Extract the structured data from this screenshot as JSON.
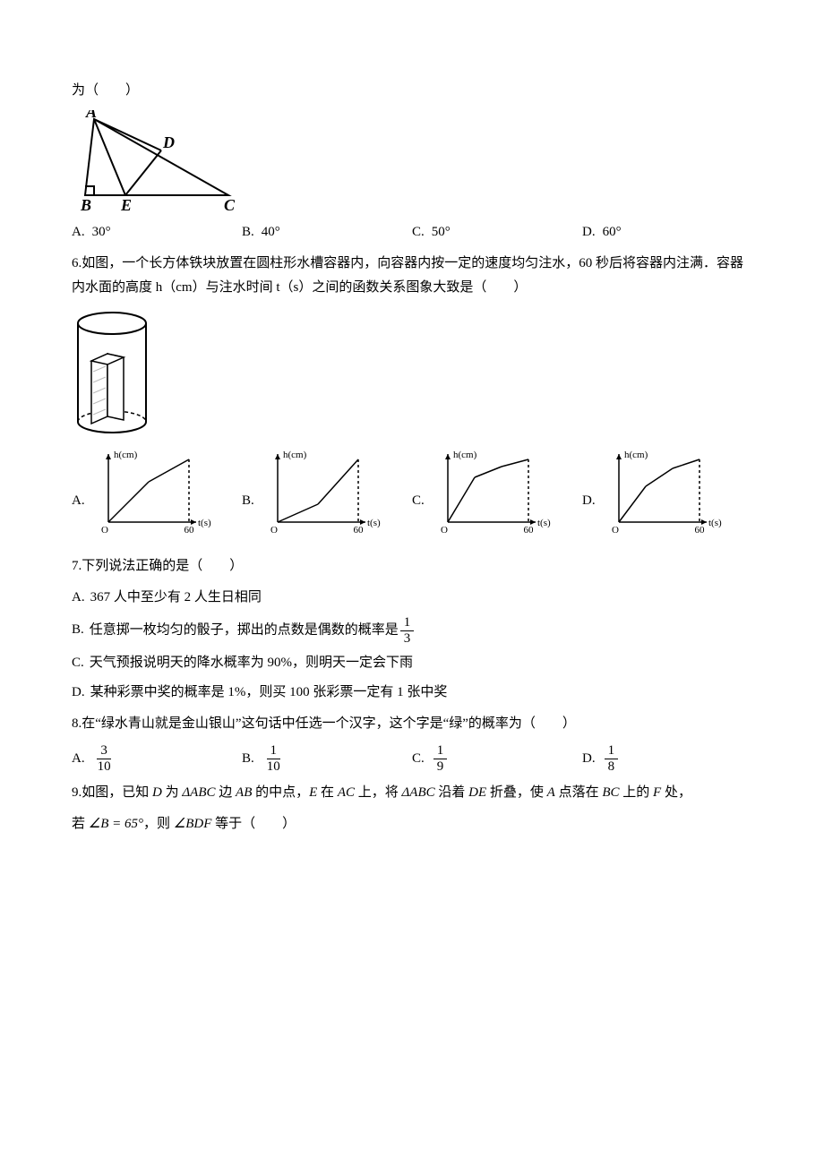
{
  "q5": {
    "tail_line": "为（　　）",
    "figure": {
      "points": {
        "A": [
          25,
          10
        ],
        "B": [
          15,
          95
        ],
        "E": [
          60,
          95
        ],
        "C": [
          175,
          95
        ],
        "D": [
          100,
          45
        ]
      },
      "right_angle_at": [
        15,
        95
      ],
      "labels": {
        "A": "A",
        "B": "B",
        "C": "C",
        "D": "D",
        "E": "E"
      },
      "stroke": "#000000",
      "stroke_width": 2,
      "font_size": 18,
      "font_style": "italic"
    },
    "options": [
      {
        "letter": "A.",
        "value": "30°"
      },
      {
        "letter": "B.",
        "value": "40°"
      },
      {
        "letter": "C.",
        "value": "50°"
      },
      {
        "letter": "D.",
        "value": "60°"
      }
    ]
  },
  "q6": {
    "text": "6.如图，一个长方体铁块放置在圆柱形水槽容器内，向容器内按一定的速度均匀注水，60 秒后将容器内注满．容器内水面的高度 h（cm）与注水时间 t（s）之间的函数关系图象大致是（　　）",
    "figure_style": {
      "stroke": "#000000",
      "fill": "#ffffff",
      "hatch": "#888888",
      "stroke_width": 2
    },
    "graph_common": {
      "x_label": "t(s)",
      "y_label": "h(cm)",
      "x_tick": "60",
      "origin": "O",
      "axis_color": "#000000",
      "dash_color": "#000000",
      "font_size": 11
    },
    "graphs": [
      {
        "letter": "A.",
        "pts": [
          [
            0,
            0
          ],
          [
            30,
            45
          ],
          [
            60,
            70
          ]
        ]
      },
      {
        "letter": "B.",
        "pts": [
          [
            0,
            0
          ],
          [
            30,
            20
          ],
          [
            60,
            70
          ]
        ]
      },
      {
        "letter": "C.",
        "pts": [
          [
            0,
            0
          ],
          [
            20,
            50
          ],
          [
            40,
            62
          ],
          [
            60,
            70
          ]
        ]
      },
      {
        "letter": "D.",
        "pts": [
          [
            0,
            0
          ],
          [
            20,
            40
          ],
          [
            40,
            60
          ],
          [
            60,
            70
          ]
        ]
      }
    ]
  },
  "q7": {
    "stem": "7.下列说法正确的是（　　）",
    "options": [
      {
        "letter": "A.",
        "text": "367 人中至少有 2 人生日相同",
        "frac": null
      },
      {
        "letter": "B.",
        "text_pre": "任意掷一枚均匀的骰子，掷出的点数是偶数的概率是",
        "frac": {
          "n": "1",
          "d": "3"
        }
      },
      {
        "letter": "C.",
        "text": "天气预报说明天的降水概率为 90%，则明天一定会下雨",
        "frac": null
      },
      {
        "letter": "D.",
        "text": "某种彩票中奖的概率是 1%，则买 100 张彩票一定有 1 张中奖",
        "frac": null
      }
    ]
  },
  "q8": {
    "stem": "8.在“绿水青山就是金山银山”这句话中任选一个汉字，这个字是“绿”的概率为（　　）",
    "options": [
      {
        "letter": "A.",
        "frac": {
          "n": "3",
          "d": "10"
        }
      },
      {
        "letter": "B.",
        "frac": {
          "n": "1",
          "d": "10"
        }
      },
      {
        "letter": "C.",
        "frac": {
          "n": "1",
          "d": "9"
        }
      },
      {
        "letter": "D.",
        "frac": {
          "n": "1",
          "d": "8"
        }
      }
    ]
  },
  "q9": {
    "line1_parts": [
      "9.如图，已知 ",
      "D",
      " 为 ",
      "ΔABC",
      " 边 ",
      "AB",
      " 的中点，",
      "E",
      " 在 ",
      "AC",
      " 上，将 ",
      "ΔABC",
      " 沿着 ",
      "DE",
      " 折叠，使 ",
      "A",
      " 点落在 ",
      "BC",
      " 上的 ",
      "F",
      " 处，"
    ],
    "line2_pre": "若 ",
    "line2_eq": "∠B = 65°",
    "line2_mid": "，则 ",
    "line2_ang": "∠BDF",
    "line2_post": " 等于（　　）"
  }
}
